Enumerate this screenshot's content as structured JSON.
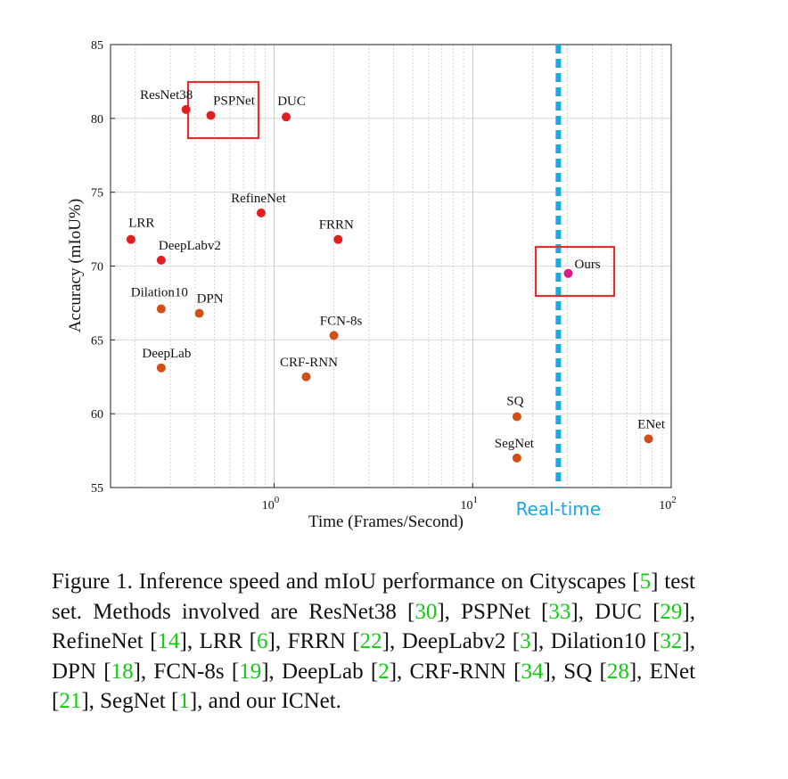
{
  "chart_data": {
    "type": "scatter",
    "xscale": "log",
    "xlim": [
      0.15,
      100
    ],
    "ylim": [
      55,
      85
    ],
    "yticks": [
      55,
      60,
      65,
      70,
      75,
      80,
      85
    ],
    "xtick_labels": [
      {
        "value": 1,
        "base": "10",
        "exp": "0"
      },
      {
        "value": 10,
        "base": "10",
        "exp": "1"
      },
      {
        "value": 100,
        "base": "10",
        "exp": "2"
      }
    ],
    "xlabel": "Time (Frames/Second)",
    "ylabel": "Accuracy (mIoU%)",
    "realtime": {
      "x": 27,
      "label": "Real-time",
      "color": "#1aa9e0"
    },
    "points": [
      {
        "name": "ResNet38",
        "x": 0.36,
        "y": 80.6,
        "color": "#e02020"
      },
      {
        "name": "PSPNet",
        "x": 0.48,
        "y": 80.2,
        "color": "#e02020",
        "highlight": true
      },
      {
        "name": "DUC",
        "x": 1.15,
        "y": 80.1,
        "color": "#e02020"
      },
      {
        "name": "RefineNet",
        "x": 0.86,
        "y": 73.6,
        "color": "#e02020"
      },
      {
        "name": "LRR",
        "x": 0.19,
        "y": 71.8,
        "color": "#e02020"
      },
      {
        "name": "FRRN",
        "x": 2.1,
        "y": 71.8,
        "color": "#e02020"
      },
      {
        "name": "DeepLabv2",
        "x": 0.27,
        "y": 70.4,
        "color": "#e02020"
      },
      {
        "name": "Dilation10",
        "x": 0.27,
        "y": 67.1,
        "color": "#d05018"
      },
      {
        "name": "DPN",
        "x": 0.42,
        "y": 66.8,
        "color": "#d05018"
      },
      {
        "name": "FCN-8s",
        "x": 2.0,
        "y": 65.3,
        "color": "#d05018"
      },
      {
        "name": "DeepLab",
        "x": 0.27,
        "y": 63.1,
        "color": "#d05018"
      },
      {
        "name": "CRF-RNN",
        "x": 1.45,
        "y": 62.5,
        "color": "#d05018"
      },
      {
        "name": "SQ",
        "x": 16.7,
        "y": 59.8,
        "color": "#d05018"
      },
      {
        "name": "SegNet",
        "x": 16.7,
        "y": 57.0,
        "color": "#d05018"
      },
      {
        "name": "ENet",
        "x": 76.9,
        "y": 58.3,
        "color": "#d05018"
      },
      {
        "name": "Ours",
        "x": 30.3,
        "y": 69.5,
        "color": "#d81b8a",
        "highlight": true
      }
    ],
    "highlight_color": "#e03030"
  },
  "caption": [
    {
      "t": "Figure 1. Inference speed and mIoU performance on Cityscapes ["
    },
    {
      "t": "5",
      "ref": true
    },
    {
      "t": "] test set. Methods involved are ResNet38 ["
    },
    {
      "t": "30",
      "ref": true
    },
    {
      "t": "], PSPNet ["
    },
    {
      "t": "33",
      "ref": true
    },
    {
      "t": "], DUC ["
    },
    {
      "t": "29",
      "ref": true
    },
    {
      "t": "], RefineNet ["
    },
    {
      "t": "14",
      "ref": true
    },
    {
      "t": "], LRR ["
    },
    {
      "t": "6",
      "ref": true
    },
    {
      "t": "], FRRN ["
    },
    {
      "t": "22",
      "ref": true
    },
    {
      "t": "], DeepLabv2 ["
    },
    {
      "t": "3",
      "ref": true
    },
    {
      "t": "], Dilation10 ["
    },
    {
      "t": "32",
      "ref": true
    },
    {
      "t": "], DPN ["
    },
    {
      "t": "18",
      "ref": true
    },
    {
      "t": "], FCN-8s ["
    },
    {
      "t": "19",
      "ref": true
    },
    {
      "t": "], DeepLab ["
    },
    {
      "t": "2",
      "ref": true
    },
    {
      "t": "], CRF-RNN ["
    },
    {
      "t": "34",
      "ref": true
    },
    {
      "t": "], SQ ["
    },
    {
      "t": "28",
      "ref": true
    },
    {
      "t": "], ENet ["
    },
    {
      "t": "21",
      "ref": true
    },
    {
      "t": "], SegNet ["
    },
    {
      "t": "1",
      "ref": true
    },
    {
      "t": "], and our ICNet."
    }
  ]
}
